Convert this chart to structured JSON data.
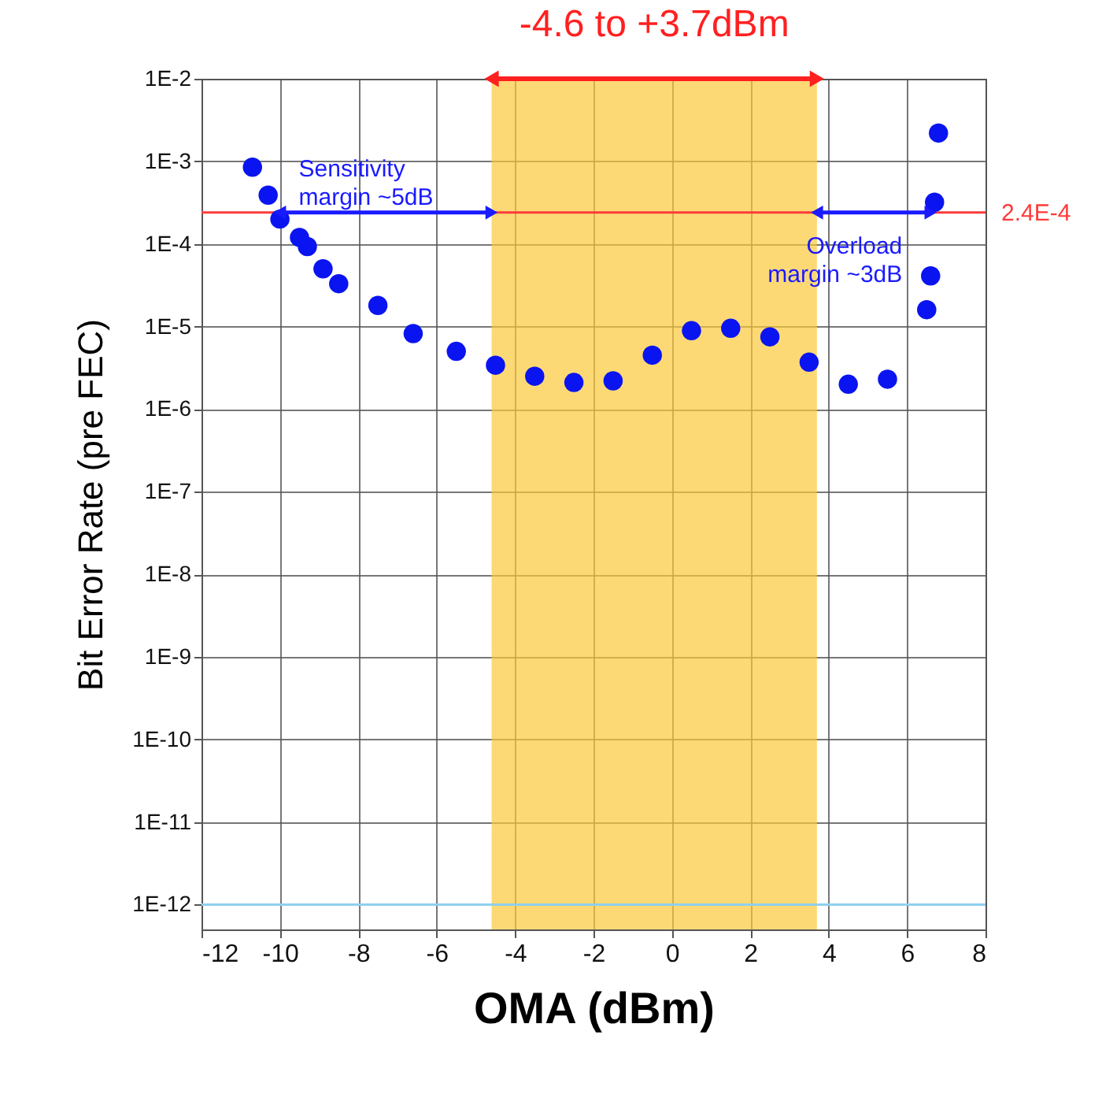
{
  "chart_data": {
    "type": "scatter",
    "xlabel": "OMA (dBm)",
    "ylabel": "Bit Error Rate (pre FEC)",
    "series": [
      {
        "color": "#0a14f0",
        "x": [
          -10.7,
          -10.3,
          -10,
          -9.5,
          -9.3,
          -8.9,
          -8.5,
          -7.5,
          -6.6,
          -5.5,
          -4.5,
          -3.5,
          -2.5,
          -1.5,
          -0.5,
          0.5,
          1.5,
          2.5,
          3.5,
          4.5,
          5.5,
          6.5,
          6.6,
          6.7,
          6.8
        ],
        "values": [
          0.00085,
          0.00039,
          0.0002,
          0.00012,
          9.3e-05,
          5e-05,
          3.3e-05,
          1.8e-05,
          8.2e-06,
          5e-06,
          3.4e-06,
          2.5e-06,
          2.1e-06,
          2.2e-06,
          4.5e-06,
          8.9e-06,
          9.5e-06,
          7.5e-06,
          3.7e-06,
          2e-06,
          2.3e-06,
          1.6e-05,
          4.1e-05,
          0.00032,
          0.0022
        ]
      }
    ],
    "marker": "circle",
    "log": "y",
    "xlim": [
      -12,
      8
    ],
    "xticks": [
      -12,
      -10,
      -8,
      -6,
      -4,
      -2,
      0,
      2,
      4,
      6,
      8
    ],
    "ylim": [
      5e-13,
      0.01
    ],
    "yticks": [
      {
        "value": 0.01,
        "label": "1E-2"
      },
      {
        "value": 0.001,
        "label": "1E-3"
      },
      {
        "value": 0.0001,
        "label": "1E-4"
      },
      {
        "value": 1e-05,
        "label": "1E-5"
      },
      {
        "value": 1e-06,
        "label": "1E-6"
      },
      {
        "value": 1e-07,
        "label": "1E-7"
      },
      {
        "value": 1e-08,
        "label": "1E-8"
      },
      {
        "value": 1e-09,
        "label": "1E-9"
      },
      {
        "value": 1e-10,
        "label": "1E-10"
      },
      {
        "value": 1e-11,
        "label": "1E-11"
      },
      {
        "value": 1e-12,
        "label": "1E-12"
      }
    ],
    "grid": true,
    "bands": [
      {
        "axis": "x",
        "from": -4.6,
        "to": 3.7,
        "label": "-4.6 to +3.7dBm",
        "color": "#fcc93a"
      }
    ],
    "ref_lines": [
      {
        "axis": "y",
        "value": 0.00024,
        "label": "2.4E-4",
        "color": "#ff3b3b"
      },
      {
        "axis": "y",
        "value": 1e-12,
        "color": "#8fd0ee"
      }
    ],
    "annotations": [
      {
        "text": "Sensitivity\nmargin ~5dB",
        "x": -10,
        "y": 0.00024
      },
      {
        "text": "Overload\nmargin ~3dB",
        "x": 6.6,
        "y": 0.00024
      }
    ]
  }
}
